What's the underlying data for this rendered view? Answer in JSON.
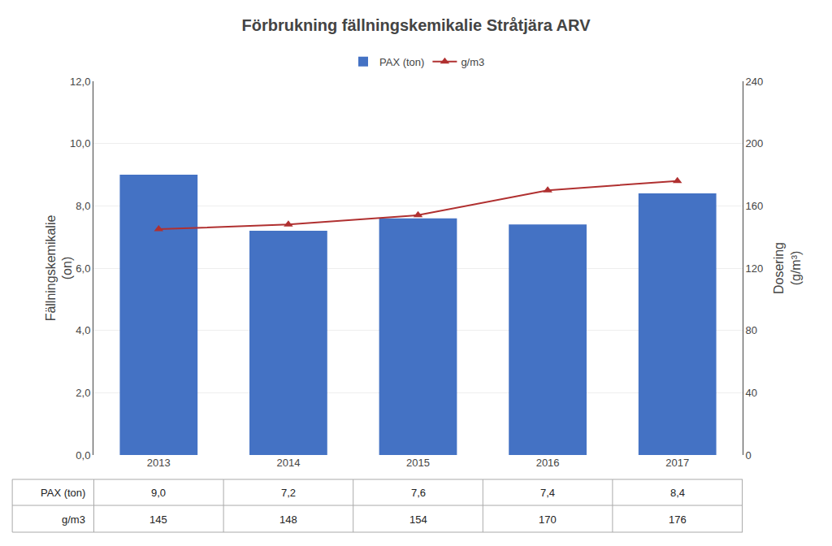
{
  "chart_data": {
    "type": "bar",
    "title": "Förbrukning fällningskemikalie Stråtjära ARV",
    "categories": [
      "2013",
      "2014",
      "2015",
      "2016",
      "2017"
    ],
    "series": [
      {
        "name": "PAX (ton)",
        "type": "bar",
        "color": "#4472C4",
        "values": [
          9.0,
          7.2,
          7.6,
          7.4,
          8.4
        ],
        "value_labels": [
          "9,0",
          "7,2",
          "7,6",
          "7,4",
          "8,4"
        ]
      },
      {
        "name": "g/m3",
        "type": "line",
        "axis": "y2",
        "color": "#B03030",
        "marker": "triangle-up",
        "values": [
          145,
          148,
          154,
          170,
          176
        ]
      }
    ],
    "ylabel": "Fällningskemikalie\n(on)",
    "y2label": "Dosering\n(g/m³)",
    "ylim": [
      0,
      12.0
    ],
    "yticks": [
      {
        "value": 0.0,
        "label": "0,0"
      },
      {
        "value": 2.0,
        "label": "2,0"
      },
      {
        "value": 4.0,
        "label": "4,0"
      },
      {
        "value": 6.0,
        "label": "6,0"
      },
      {
        "value": 8.0,
        "label": "8,0"
      },
      {
        "value": 10.0,
        "label": "10,0"
      },
      {
        "value": 12.0,
        "label": "12,0"
      }
    ],
    "y2lim": [
      0,
      240
    ],
    "y2ticks": [
      0,
      40,
      80,
      120,
      160,
      200,
      240
    ],
    "grid": true,
    "legend": "top"
  }
}
